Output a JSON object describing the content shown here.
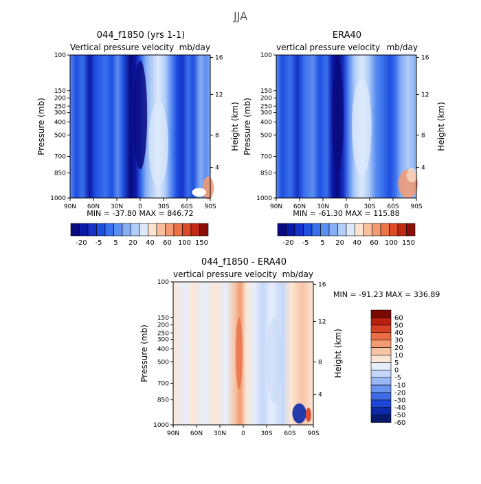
{
  "figure": {
    "title": "JJA"
  },
  "colors": {
    "abs_scale": [
      "#0a0a80",
      "#0a1aa8",
      "#1432c8",
      "#1e4fe0",
      "#3a70ec",
      "#5b8ef2",
      "#86aef5",
      "#b2cdf7",
      "#dde9fb",
      "#fce3cf",
      "#f7bfa0",
      "#f29a72",
      "#ec7248",
      "#de4a28",
      "#c02a14",
      "#8a0f08"
    ],
    "diff_scale": [
      "#08196e",
      "#0c2aa8",
      "#1e46d4",
      "#3f6ce6",
      "#6a92ef",
      "#9ab8f4",
      "#c4d7f8",
      "#e6eefb",
      "#fbe6d6",
      "#f7c4a4",
      "#f29a72",
      "#ea6e44",
      "#d84024",
      "#b8200e",
      "#7a0a04"
    ]
  },
  "chart_data": [
    {
      "type": "heatmap",
      "title": "044_f1850 (yrs 1-1)",
      "subtitle_left": "Vertical pressure velocity",
      "subtitle_right": "mb/day",
      "ylabel": "Pressure (mb)",
      "ylabel_right": "Height (km)",
      "x_ticks": [
        "90N",
        "60N",
        "30N",
        "0",
        "30S",
        "60S",
        "90S"
      ],
      "y_ticks": [
        "100",
        "150",
        "200",
        "250",
        "300",
        "400",
        "500",
        "700",
        "850",
        "1000"
      ],
      "y_right_ticks": [
        "16",
        "12",
        "8",
        "4"
      ],
      "stats": "MIN = -37.80   MAX = 846.72",
      "colorbar_labels": [
        "-20",
        "-5",
        "5",
        "20",
        "40",
        "60",
        "100",
        "150"
      ]
    },
    {
      "type": "heatmap",
      "title": "ERA40",
      "subtitle_left": "vertical pressure velocity",
      "subtitle_right": "mb/day",
      "ylabel": "Pressure (mb)",
      "ylabel_right": "Height (km)",
      "x_ticks": [
        "90N",
        "60N",
        "30N",
        "0",
        "30S",
        "60S",
        "90S"
      ],
      "y_ticks": [
        "100",
        "150",
        "200",
        "250",
        "300",
        "400",
        "500",
        "700",
        "850",
        "1000"
      ],
      "y_right_ticks": [
        "16",
        "12",
        "8",
        "4"
      ],
      "stats": "MIN = -61.30   MAX = 115.88",
      "colorbar_labels": [
        "-20",
        "-5",
        "5",
        "20",
        "40",
        "60",
        "100",
        "150"
      ]
    },
    {
      "type": "heatmap",
      "title": "044_f1850 - ERA40",
      "subtitle_left": "vertical pressure velocity",
      "subtitle_right": "mb/day",
      "ylabel": "Pressure (mb)",
      "ylabel_right": "Height (km)",
      "x_ticks": [
        "90N",
        "60N",
        "30N",
        "0",
        "30S",
        "60S",
        "90S"
      ],
      "y_ticks": [
        "100",
        "150",
        "200",
        "250",
        "300",
        "400",
        "500",
        "700",
        "850",
        "1000"
      ],
      "y_right_ticks": [
        "16",
        "12",
        "8",
        "4"
      ],
      "stats": "MIN = -91.23   MAX = 336.89",
      "colorbar_labels": [
        "60",
        "50",
        "40",
        "30",
        "20",
        "10",
        "5",
        "0",
        "-5",
        "-10",
        "-20",
        "-30",
        "-40",
        "-50",
        "-60"
      ]
    }
  ]
}
